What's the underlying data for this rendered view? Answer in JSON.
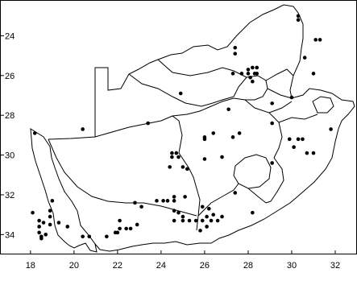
{
  "map": {
    "x_ticks": [
      18,
      20,
      22,
      24,
      26,
      28,
      30,
      32
    ],
    "y_ticks": [
      24,
      26,
      28,
      30,
      32,
      34
    ],
    "x_range": [
      16.6,
      33.0
    ],
    "y_range": [
      22.2,
      35.0
    ],
    "y_axis_inverted": true,
    "border_color": "#000000",
    "point_color": "#000000",
    "background_color": "#ffffff",
    "points": [
      [
        30.3,
        23.0
      ],
      [
        30.3,
        23.2
      ],
      [
        31.1,
        24.2
      ],
      [
        31.3,
        24.2
      ],
      [
        27.4,
        24.6
      ],
      [
        27.4,
        24.9
      ],
      [
        30.6,
        25.1
      ],
      [
        27.3,
        25.9
      ],
      [
        27.7,
        25.9
      ],
      [
        28.0,
        25.7
      ],
      [
        28.2,
        25.6
      ],
      [
        28.4,
        25.6
      ],
      [
        28.0,
        25.9
      ],
      [
        28.3,
        25.9
      ],
      [
        28.1,
        26.1
      ],
      [
        28.2,
        26.3
      ],
      [
        28.4,
        25.9
      ],
      [
        31.0,
        25.9
      ],
      [
        24.9,
        26.9
      ],
      [
        30.0,
        27.1
      ],
      [
        29.1,
        27.4
      ],
      [
        31.8,
        28.7
      ],
      [
        27.1,
        27.7
      ],
      [
        23.4,
        28.4
      ],
      [
        26.4,
        28.9
      ],
      [
        26.0,
        29.1
      ],
      [
        27.6,
        28.9
      ],
      [
        27.3,
        29.1
      ],
      [
        29.1,
        28.4
      ],
      [
        18.2,
        28.9
      ],
      [
        20.4,
        28.7
      ],
      [
        24.5,
        29.9
      ],
      [
        24.7,
        29.9
      ],
      [
        24.8,
        30.1
      ],
      [
        24.5,
        30.1
      ],
      [
        25.0,
        30.6
      ],
      [
        25.2,
        30.7
      ],
      [
        24.4,
        30.6
      ],
      [
        26.0,
        29.2
      ],
      [
        26.0,
        30.2
      ],
      [
        26.8,
        30.1
      ],
      [
        29.9,
        29.2
      ],
      [
        30.3,
        29.2
      ],
      [
        30.5,
        29.2
      ],
      [
        30.1,
        29.6
      ],
      [
        30.7,
        29.9
      ],
      [
        31.0,
        29.9
      ],
      [
        29.1,
        30.4
      ],
      [
        27.4,
        31.9
      ],
      [
        28.2,
        32.9
      ],
      [
        23.8,
        32.3
      ],
      [
        22.8,
        32.4
      ],
      [
        23.1,
        32.6
      ],
      [
        24.1,
        32.3
      ],
      [
        24.3,
        32.3
      ],
      [
        24.6,
        32.1
      ],
      [
        24.6,
        32.3
      ],
      [
        25.1,
        32.1
      ],
      [
        24.6,
        32.8
      ],
      [
        24.8,
        32.9
      ],
      [
        25.0,
        33.1
      ],
      [
        25.0,
        33.3
      ],
      [
        25.3,
        33.3
      ],
      [
        25.6,
        33.3
      ],
      [
        24.6,
        33.3
      ],
      [
        25.9,
        32.6
      ],
      [
        26.2,
        32.7
      ],
      [
        26.4,
        33.0
      ],
      [
        26.1,
        33.1
      ],
      [
        25.9,
        33.3
      ],
      [
        26.3,
        33.3
      ],
      [
        26.8,
        33.1
      ],
      [
        26.6,
        33.3
      ],
      [
        26.1,
        33.6
      ],
      [
        25.8,
        33.8
      ],
      [
        22.1,
        33.3
      ],
      [
        22.4,
        33.7
      ],
      [
        22.6,
        33.7
      ],
      [
        22.1,
        33.7
      ],
      [
        21.9,
        33.9
      ],
      [
        22.9,
        33.5
      ],
      [
        18.1,
        32.9
      ],
      [
        18.4,
        33.3
      ],
      [
        18.4,
        33.6
      ],
      [
        18.6,
        33.4
      ],
      [
        18.9,
        32.8
      ],
      [
        18.9,
        33.1
      ],
      [
        18.9,
        33.5
      ],
      [
        19.0,
        32.3
      ],
      [
        19.3,
        33.4
      ],
      [
        19.7,
        33.6
      ],
      [
        18.4,
        33.9
      ],
      [
        18.5,
        34.1
      ],
      [
        18.7,
        34.0
      ],
      [
        18.5,
        34.2
      ],
      [
        20.4,
        34.1
      ],
      [
        20.7,
        34.1
      ],
      [
        21.5,
        34.1
      ],
      [
        22.0,
        33.9
      ]
    ]
  }
}
